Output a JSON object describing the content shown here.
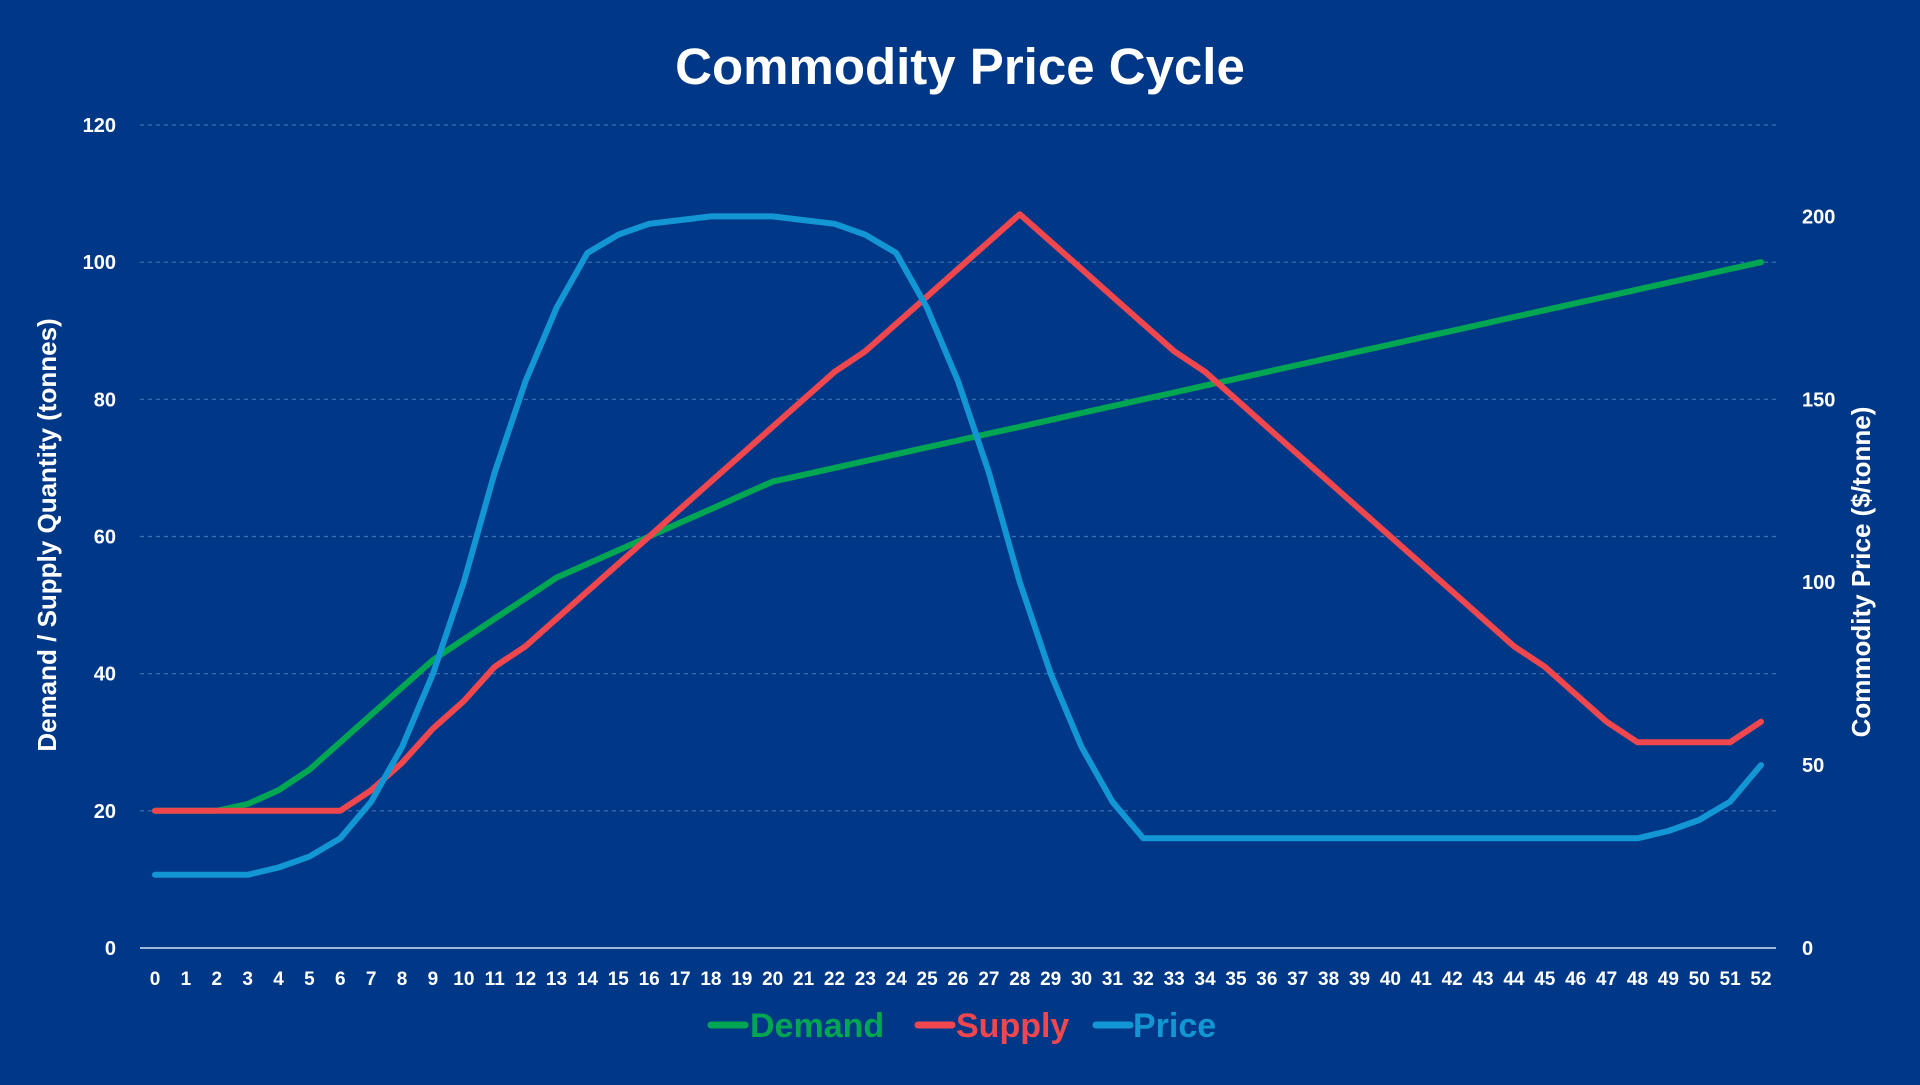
{
  "colors": {
    "background": "#003887",
    "demand": "#00A651",
    "supply": "#F0474E",
    "price": "#1296D4",
    "text": "#FFFFFF"
  },
  "chart_data": {
    "type": "line",
    "title": "Commodity Price Cycle",
    "xlabel": "",
    "ylabel": "Demand  / Supply Quantity (tonnes)",
    "y2label": "Commodity Price ($/tonne)",
    "ylim": [
      0,
      120
    ],
    "y2lim": [
      0,
      225
    ],
    "yticks": [
      0,
      20,
      40,
      60,
      80,
      100,
      120
    ],
    "y2ticks": [
      0,
      50,
      100,
      150,
      200
    ],
    "grid": true,
    "legend_position": "bottom",
    "x": [
      0,
      1,
      2,
      3,
      4,
      5,
      6,
      7,
      8,
      9,
      10,
      11,
      12,
      13,
      14,
      15,
      16,
      17,
      18,
      19,
      20,
      21,
      22,
      23,
      24,
      25,
      26,
      27,
      28,
      29,
      30,
      31,
      32,
      33,
      34,
      35,
      36,
      37,
      38,
      39,
      40,
      41,
      42,
      43,
      44,
      45,
      46,
      47,
      48,
      49,
      50,
      51,
      52
    ],
    "series": [
      {
        "name": "Demand",
        "axis": "left",
        "color": "#00A651",
        "values": [
          20,
          20,
          20,
          21,
          23,
          26,
          30,
          34,
          38,
          42,
          45,
          48,
          51,
          54,
          56,
          58,
          60,
          62,
          64,
          66,
          68,
          69,
          70,
          71,
          72,
          73,
          74,
          75,
          76,
          77,
          78,
          79,
          80,
          81,
          82,
          83,
          84,
          85,
          86,
          87,
          88,
          89,
          90,
          91,
          92,
          93,
          94,
          95,
          96,
          97,
          98,
          99,
          100
        ]
      },
      {
        "name": "Supply",
        "axis": "left",
        "color": "#F0474E",
        "values": [
          20,
          20,
          20,
          20,
          20,
          20,
          20,
          23,
          27,
          32,
          36,
          41,
          44,
          48,
          52,
          56,
          60,
          64,
          68,
          72,
          76,
          80,
          84,
          87,
          91,
          95,
          99,
          103,
          107,
          103,
          99,
          95,
          91,
          87,
          84,
          80,
          76,
          72,
          68,
          64,
          60,
          56,
          52,
          48,
          44,
          41,
          37,
          33,
          30,
          30,
          30,
          30,
          33
        ]
      },
      {
        "name": "Price",
        "axis": "right",
        "color": "#1296D4",
        "values": [
          20,
          20,
          20,
          20,
          22,
          25,
          30,
          40,
          55,
          75,
          100,
          130,
          155,
          175,
          190,
          195,
          198,
          199,
          200,
          200,
          200,
          199,
          198,
          195,
          190,
          175,
          155,
          130,
          100,
          75,
          55,
          40,
          30,
          30,
          30,
          30,
          30,
          30,
          30,
          30,
          30,
          30,
          30,
          30,
          30,
          30,
          30,
          30,
          30,
          32,
          35,
          40,
          50
        ]
      }
    ]
  }
}
